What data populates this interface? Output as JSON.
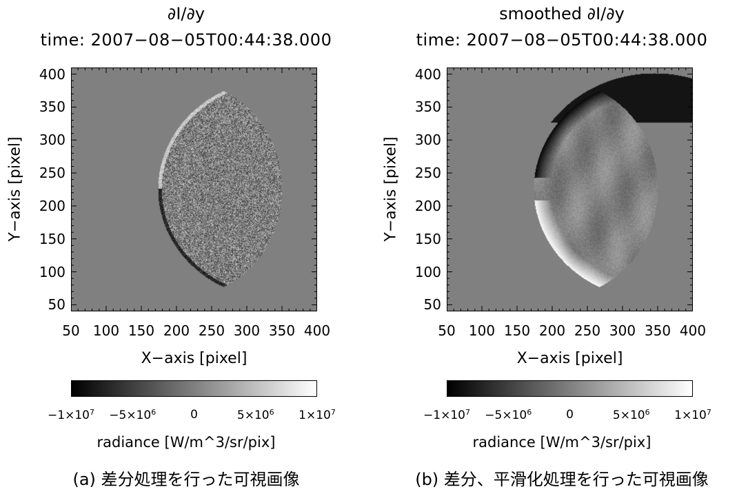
{
  "chart_data": [
    {
      "type": "heatmap",
      "title": "∂I/∂y",
      "subtitle": "time: 2007−08−05T00:44:38.000",
      "xlabel": "X−axis [pixel]",
      "ylabel": "Y−axis [pixel]",
      "xlim": [
        50,
        400
      ],
      "ylim": [
        40,
        410
      ],
      "x_ticks": [
        "50",
        "100",
        "150",
        "200",
        "250",
        "300",
        "350",
        "400"
      ],
      "y_ticks": [
        "50",
        "100",
        "150",
        "200",
        "250",
        "300",
        "350",
        "400"
      ],
      "colorbar": {
        "label": "radiance [W/m^3/sr/pix]",
        "range": [
          -10000000,
          10000000
        ],
        "ticks": [
          {
            "mant": "−1×10",
            "exp": "7"
          },
          {
            "mant": "−5×10",
            "exp": "6"
          },
          {
            "mant": "0",
            "exp": ""
          },
          {
            "mant": "5×10",
            "exp": "6"
          },
          {
            "mant": "1×10",
            "exp": "7"
          }
        ],
        "colormap": "grayscale"
      },
      "caption": "(a) 差分処理を行った可視画像",
      "style": "noisy"
    },
    {
      "type": "heatmap",
      "title": "smoothed ∂I/∂y",
      "subtitle": "time: 2007−08−05T00:44:38.000",
      "xlabel": "X−axis [pixel]",
      "ylabel": "Y−axis [pixel]",
      "xlim": [
        50,
        400
      ],
      "ylim": [
        40,
        410
      ],
      "x_ticks": [
        "50",
        "100",
        "150",
        "200",
        "250",
        "300",
        "350",
        "400"
      ],
      "y_ticks": [
        "50",
        "100",
        "150",
        "200",
        "250",
        "300",
        "350",
        "400"
      ],
      "colorbar": {
        "label": "radiance [W/m^3/sr/pix]",
        "range": [
          -10000000,
          10000000
        ],
        "ticks": [
          {
            "mant": "−1×10",
            "exp": "7"
          },
          {
            "mant": "−5×10",
            "exp": "6"
          },
          {
            "mant": "0",
            "exp": ""
          },
          {
            "mant": "5×10",
            "exp": "6"
          },
          {
            "mant": "1×10",
            "exp": "7"
          }
        ],
        "colormap": "grayscale"
      },
      "caption": "(b) 差分、平滑化処理を行った可視画像",
      "style": "smoothed"
    }
  ],
  "colors": {
    "background": "#808080",
    "axis": "#000000"
  }
}
